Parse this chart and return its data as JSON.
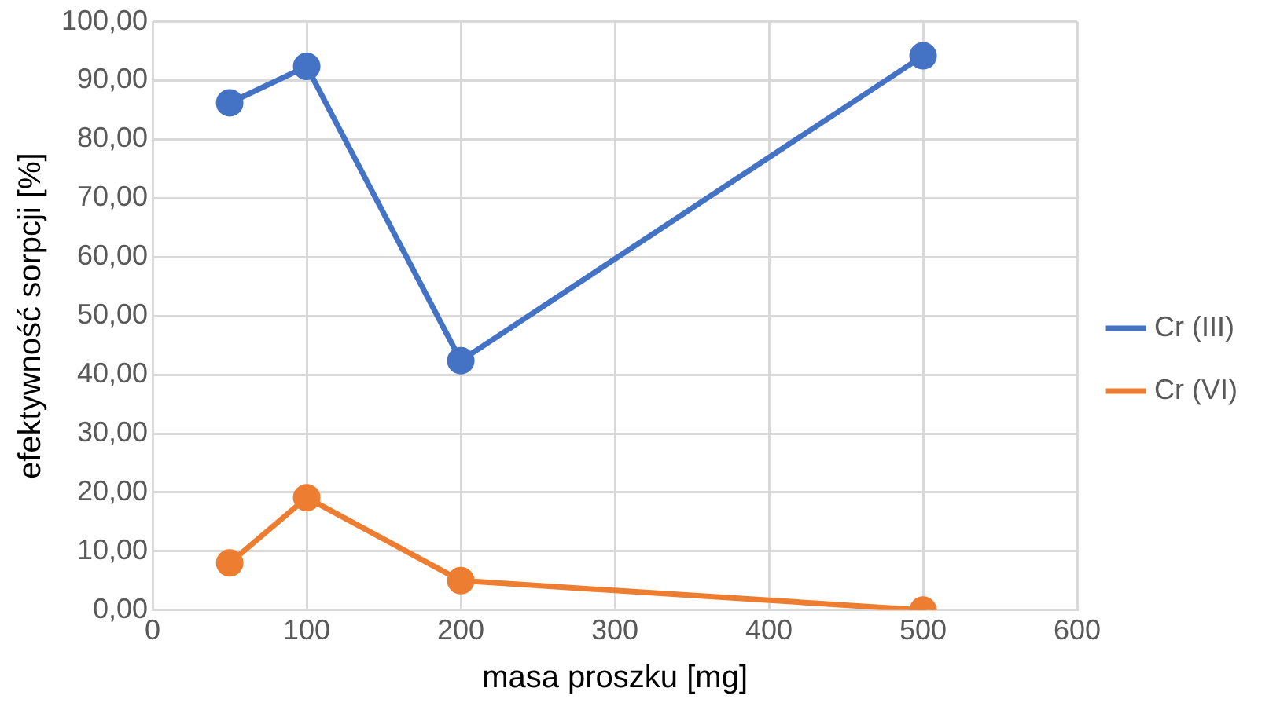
{
  "chart_data": {
    "type": "line",
    "xlabel": "masa proszku [mg]",
    "ylabel": "efektywność sorpcji [%]",
    "x": [
      50,
      100,
      200,
      500
    ],
    "series": [
      {
        "name": "Cr (III)",
        "color": "#4472c4",
        "values": [
          86.2,
          92.4,
          42.4,
          94.2
        ]
      },
      {
        "name": "Cr (VI)",
        "color": "#ed7d31",
        "values": [
          8.0,
          19.1,
          5.0,
          0
        ]
      }
    ],
    "xlim": [
      0,
      600
    ],
    "xticks": [
      0,
      100,
      200,
      300,
      400,
      500,
      600
    ],
    "ylim": [
      0,
      100
    ],
    "yticks": [
      {
        "value": 0,
        "label": "0,00"
      },
      {
        "value": 10,
        "label": "10,00"
      },
      {
        "value": 20,
        "label": "20,00"
      },
      {
        "value": 30,
        "label": "30,00"
      },
      {
        "value": 40,
        "label": "40,00"
      },
      {
        "value": 50,
        "label": "50,00"
      },
      {
        "value": 60,
        "label": "60,00"
      },
      {
        "value": 70,
        "label": "70,00"
      },
      {
        "value": 80,
        "label": "80,00"
      },
      {
        "value": 90,
        "label": "90,00"
      },
      {
        "value": 100,
        "label": "100,00"
      }
    ],
    "grid": true,
    "legend": "right",
    "marker": "circle",
    "line_style": "solid"
  }
}
